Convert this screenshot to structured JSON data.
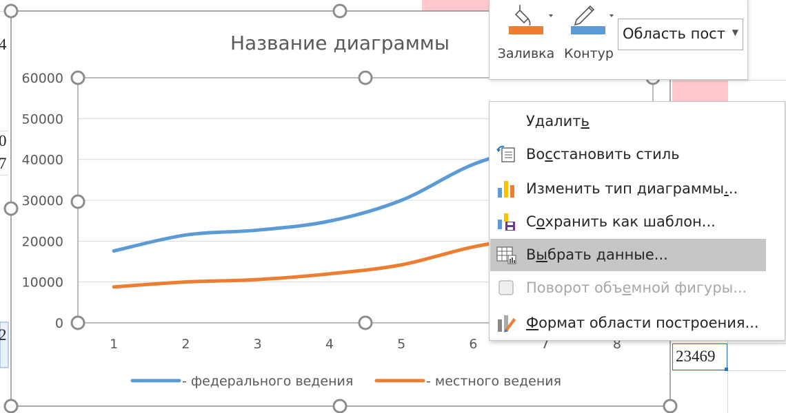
{
  "sheet": {
    "cells": [
      {
        "id": "cell-a",
        "text": "4"
      },
      {
        "id": "cell-b",
        "text": "0"
      },
      {
        "id": "cell-c",
        "text": "7"
      },
      {
        "id": "cell-d",
        "text": "2"
      },
      {
        "id": "cell-value",
        "text": "23469"
      }
    ],
    "highlight_color": "#ffc7ce"
  },
  "chart_data": {
    "type": "line",
    "title": "Название диаграммы",
    "x": [
      1,
      2,
      3,
      4,
      5,
      6,
      7,
      8
    ],
    "x_tick_labels": [
      "1",
      "2",
      "3",
      "4",
      "5",
      "6",
      "7",
      "8"
    ],
    "y_tick_labels": [
      "0",
      "10000",
      "20000",
      "30000",
      "40000",
      "50000",
      "60000"
    ],
    "ylim": [
      0,
      60000
    ],
    "grid": true,
    "legend_position": "bottom",
    "series": [
      {
        "name": "- федерального ведения",
        "color": "#5b9bd5",
        "values": [
          17600,
          21500,
          22700,
          24900,
          30000,
          38800,
          44000,
          null
        ]
      },
      {
        "name": "- местного ведения",
        "color": "#ed7d31",
        "values": [
          8800,
          10000,
          10600,
          12000,
          14200,
          18600,
          21500,
          null
        ]
      }
    ]
  },
  "mini_toolbar": {
    "fill_label": "Заливка",
    "fill_icon": "paint-bucket-icon",
    "fill_color": "#ed7d31",
    "outline_label": "Контур",
    "outline_icon": "pencil-icon",
    "outline_color": "#5b9bd5",
    "area_select_value": "Область постр"
  },
  "context_menu": {
    "items": [
      {
        "label": "Удалить",
        "icon": "none",
        "state": "normal"
      },
      {
        "label": "Восстановить стиль",
        "icon": "reset-style-icon",
        "state": "normal"
      },
      {
        "label": "Изменить тип диаграммы...",
        "icon": "chart-type-icon",
        "state": "normal"
      },
      {
        "label": "Сохранить как шаблон...",
        "icon": "save-template-icon",
        "state": "normal"
      },
      {
        "label": "Выбрать данные...",
        "icon": "select-data-icon",
        "state": "highlighted"
      },
      {
        "label": "Поворот объемной фигуры...",
        "icon": "rotation-3d-icon",
        "state": "disabled"
      },
      {
        "label": "Формат области построения...",
        "icon": "format-plot-area-icon",
        "state": "normal"
      }
    ]
  }
}
